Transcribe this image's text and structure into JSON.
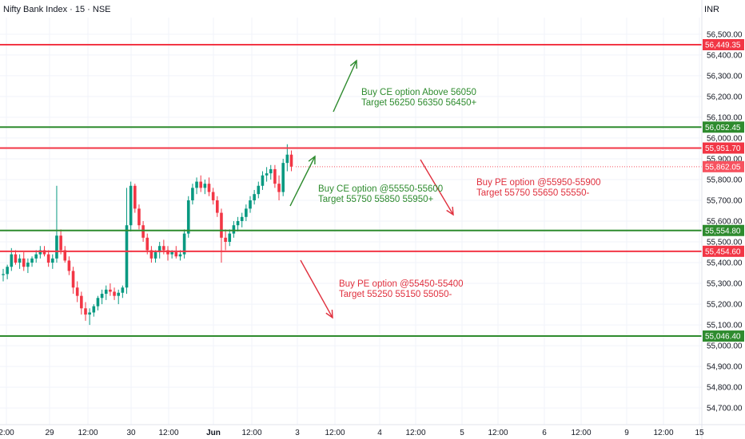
{
  "header": {
    "title": "Nifty Bank Index · 15 · NSE",
    "currency": "INR"
  },
  "chart_data": {
    "type": "candlestick",
    "y_range": [
      54620,
      56580
    ],
    "y_ticks": [
      {
        "value": 56500,
        "label": "56,500.00"
      },
      {
        "value": 56400,
        "label": "56,400.00"
      },
      {
        "value": 56300,
        "label": "56,300.00"
      },
      {
        "value": 56200,
        "label": "56,200.00"
      },
      {
        "value": 56100,
        "label": "56,100.00"
      },
      {
        "value": 56000,
        "label": "56,000.00"
      },
      {
        "value": 55900,
        "label": "55,900.00"
      },
      {
        "value": 55800,
        "label": "55,800.00"
      },
      {
        "value": 55700,
        "label": "55,700.00"
      },
      {
        "value": 55600,
        "label": "55,600.00"
      },
      {
        "value": 55500,
        "label": "55,500.00"
      },
      {
        "value": 55400,
        "label": "55,400.00"
      },
      {
        "value": 55300,
        "label": "55,300.00"
      },
      {
        "value": 55200,
        "label": "55,200.00"
      },
      {
        "value": 55100,
        "label": "55,100.00"
      },
      {
        "value": 55000,
        "label": "55,000.00"
      },
      {
        "value": 54900,
        "label": "54,900.00"
      },
      {
        "value": 54800,
        "label": "54,800.00"
      },
      {
        "value": 54700,
        "label": "54,700.00"
      }
    ],
    "x_ticks": [
      {
        "label": "2:00",
        "bold": false
      },
      {
        "label": "29",
        "bold": false
      },
      {
        "label": "12:00",
        "bold": false
      },
      {
        "label": "30",
        "bold": false
      },
      {
        "label": "12:00",
        "bold": false
      },
      {
        "label": "Jun",
        "bold": true
      },
      {
        "label": "12:00",
        "bold": false
      },
      {
        "label": "3",
        "bold": false
      },
      {
        "label": "12:00",
        "bold": false
      },
      {
        "label": "4",
        "bold": false
      },
      {
        "label": "12:00",
        "bold": false
      },
      {
        "label": "5",
        "bold": false
      },
      {
        "label": "12:00",
        "bold": false
      },
      {
        "label": "6",
        "bold": false
      },
      {
        "label": "12:00",
        "bold": false
      },
      {
        "label": "9",
        "bold": false
      },
      {
        "label": "12:00",
        "bold": false
      },
      {
        "label": "15",
        "bold": false
      }
    ],
    "levels": [
      {
        "value": 56449.35,
        "label": "56,449.35",
        "color": "#f23645"
      },
      {
        "value": 56052.45,
        "label": "56,052.45",
        "color": "#2e8b2e"
      },
      {
        "value": 55951.7,
        "label": "55,951.70",
        "color": "#f23645"
      },
      {
        "value": 55554.8,
        "label": "55,554.80",
        "color": "#2e8b2e"
      },
      {
        "value": 55454.6,
        "label": "55,454.60",
        "color": "#f23645"
      },
      {
        "value": 55046.4,
        "label": "55,046.40",
        "color": "#2e8b2e"
      }
    ],
    "last_price": {
      "value": 55862.05,
      "label": "55,862.05",
      "color": "#f7525f"
    },
    "annotations": [
      {
        "lines": [
          "Buy CE option Above 56050",
          "Target 56250 56350 56450+"
        ],
        "color": "#2e8b2e"
      },
      {
        "lines": [
          "Buy CE option @55550-55600",
          "Target 55750 55850 55950+"
        ],
        "color": "#2e8b2e"
      },
      {
        "lines": [
          "Buy PE option @55950-55900",
          "Target 55750 55650 55550-"
        ],
        "color": "#e0303e"
      },
      {
        "lines": [
          "Buy PE option @55450-55400",
          "Target 55250 55150 55050-"
        ],
        "color": "#e0303e"
      }
    ],
    "colors": {
      "up": "#089981",
      "down": "#f23645"
    },
    "candles": [
      [
        55340,
        55370,
        55310,
        55345
      ],
      [
        55345,
        55390,
        55320,
        55380
      ],
      [
        55380,
        55470,
        55360,
        55440
      ],
      [
        55440,
        55460,
        55390,
        55400
      ],
      [
        55400,
        55440,
        55370,
        55420
      ],
      [
        55420,
        55450,
        55360,
        55380
      ],
      [
        55380,
        55420,
        55350,
        55400
      ],
      [
        55400,
        55430,
        55380,
        55420
      ],
      [
        55420,
        55460,
        55400,
        55440
      ],
      [
        55440,
        55480,
        55420,
        55460
      ],
      [
        55460,
        55480,
        55430,
        55440
      ],
      [
        55440,
        55460,
        55380,
        55400
      ],
      [
        55400,
        55440,
        55370,
        55420
      ],
      [
        55420,
        55770,
        55400,
        55530
      ],
      [
        55530,
        55560,
        55440,
        55460
      ],
      [
        55460,
        55480,
        55400,
        55410
      ],
      [
        55410,
        55430,
        55340,
        55360
      ],
      [
        55360,
        55380,
        55250,
        55280
      ],
      [
        55280,
        55310,
        55210,
        55240
      ],
      [
        55240,
        55260,
        55150,
        55180
      ],
      [
        55180,
        55210,
        55120,
        55150
      ],
      [
        55150,
        55180,
        55100,
        55160
      ],
      [
        55160,
        55200,
        55140,
        55190
      ],
      [
        55190,
        55240,
        55170,
        55230
      ],
      [
        55230,
        55270,
        55200,
        55250
      ],
      [
        55250,
        55290,
        55220,
        55270
      ],
      [
        55270,
        55300,
        55240,
        55260
      ],
      [
        55260,
        55280,
        55220,
        55240
      ],
      [
        55240,
        55270,
        55200,
        55255
      ],
      [
        55255,
        55290,
        55230,
        55280
      ],
      [
        55280,
        55760,
        55250,
        55580
      ],
      [
        55580,
        55790,
        55550,
        55770
      ],
      [
        55770,
        55780,
        55640,
        55660
      ],
      [
        55660,
        55680,
        55560,
        55580
      ],
      [
        55580,
        55600,
        55500,
        55520
      ],
      [
        55520,
        55540,
        55440,
        55460
      ],
      [
        55460,
        55480,
        55400,
        55420
      ],
      [
        55420,
        55460,
        55400,
        55450
      ],
      [
        55450,
        55500,
        55420,
        55480
      ],
      [
        55480,
        55510,
        55440,
        55460
      ],
      [
        55460,
        55480,
        55410,
        55440
      ],
      [
        55440,
        55460,
        55420,
        55450
      ],
      [
        55450,
        55480,
        55420,
        55430
      ],
      [
        55430,
        55460,
        55410,
        55440
      ],
      [
        55440,
        55560,
        55420,
        55540
      ],
      [
        55540,
        55720,
        55520,
        55700
      ],
      [
        55700,
        55780,
        55680,
        55760
      ],
      [
        55760,
        55810,
        55730,
        55790
      ],
      [
        55790,
        55820,
        55740,
        55760
      ],
      [
        55760,
        55800,
        55730,
        55780
      ],
      [
        55780,
        55810,
        55720,
        55740
      ],
      [
        55740,
        55760,
        55680,
        55700
      ],
      [
        55700,
        55720,
        55620,
        55640
      ],
      [
        55640,
        55660,
        55400,
        55520
      ],
      [
        55520,
        55560,
        55460,
        55500
      ],
      [
        55500,
        55560,
        55480,
        55540
      ],
      [
        55540,
        55600,
        55520,
        55580
      ],
      [
        55580,
        55620,
        55550,
        55600
      ],
      [
        55600,
        55640,
        55570,
        55620
      ],
      [
        55620,
        55680,
        55600,
        55660
      ],
      [
        55660,
        55720,
        55640,
        55700
      ],
      [
        55700,
        55750,
        55680,
        55730
      ],
      [
        55730,
        55790,
        55710,
        55770
      ],
      [
        55770,
        55840,
        55750,
        55820
      ],
      [
        55820,
        55860,
        55790,
        55830
      ],
      [
        55830,
        55870,
        55800,
        55850
      ],
      [
        55850,
        55870,
        55760,
        55780
      ],
      [
        55780,
        55820,
        55700,
        55740
      ],
      [
        55740,
        55900,
        55720,
        55880
      ],
      [
        55880,
        55970,
        55840,
        55920
      ],
      [
        55920,
        55940,
        55840,
        55862.05
      ]
    ]
  }
}
